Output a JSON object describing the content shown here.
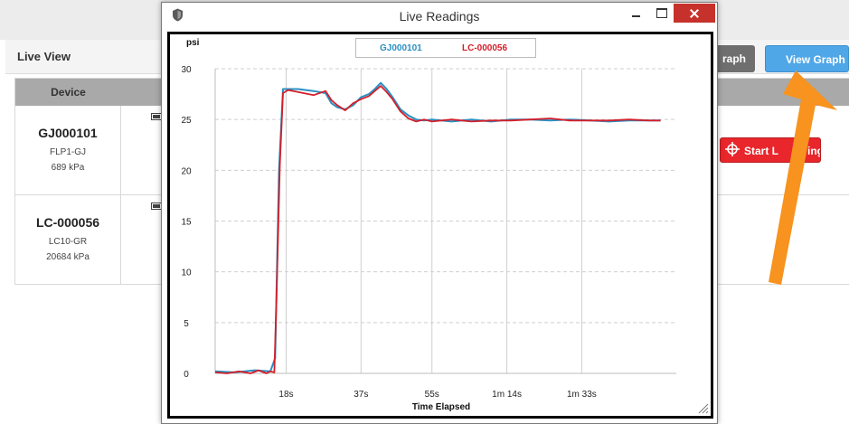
{
  "app": {
    "panel_title": "Live View",
    "graph_button_partial": "raph",
    "view_graph_button": "View Graph",
    "start_logging_partial": "Start L",
    "start_logging_tail": "ing",
    "table": {
      "device_header": "Device",
      "rows": [
        {
          "id": "GJ000101",
          "model": "FLP1-GJ",
          "pressure": "689 kPa"
        },
        {
          "id": "LC-000056",
          "model": "LC10-GR",
          "pressure": "20684 kPa"
        }
      ]
    },
    "colors": {
      "view_graph": "#4fa7e8",
      "start_logging": "#e8262b",
      "arrow": "#f7931e"
    }
  },
  "window": {
    "title": "Live Readings"
  },
  "chart_data": {
    "type": "line",
    "ylabel": "psi",
    "xlabel": "Time Elapsed",
    "ylim": [
      0,
      30
    ],
    "yticks": [
      0,
      5,
      10,
      15,
      20,
      25,
      30
    ],
    "xlim": [
      0,
      117
    ],
    "xticks": [
      {
        "t": 18,
        "label": "18s"
      },
      {
        "t": 37,
        "label": "37s"
      },
      {
        "t": 55,
        "label": "55s"
      },
      {
        "t": 74,
        "label": "1m 14s"
      },
      {
        "t": 93,
        "label": "1m 33s"
      }
    ],
    "grid": true,
    "legend_position": "top-center",
    "series": [
      {
        "name": "GJ000101",
        "color": "#2a8fc2",
        "x": [
          0,
          5,
          10,
          14,
          15.2,
          16.2,
          17.2,
          18.5,
          21,
          25,
          28,
          29.5,
          31,
          33,
          35,
          37,
          39,
          40.5,
          42,
          43.5,
          45,
          47,
          49,
          51,
          53,
          55,
          60,
          65,
          70,
          75,
          80,
          85,
          90,
          95,
          100,
          105,
          110,
          113
        ],
        "y": [
          0.2,
          0.1,
          0.3,
          0.2,
          1.5,
          20,
          28,
          28,
          28,
          27.8,
          27.6,
          26.6,
          26.2,
          26.0,
          26.4,
          27.2,
          27.5,
          28.0,
          28.6,
          28.0,
          27.2,
          26.0,
          25.4,
          25.0,
          24.9,
          25.0,
          24.8,
          25.0,
          24.8,
          25.0,
          25.0,
          24.9,
          25.0,
          24.9,
          24.8,
          24.9,
          24.9,
          24.9
        ]
      },
      {
        "name": "LC-000056",
        "color": "#d31f2a",
        "x": [
          0,
          3,
          6,
          9,
          11,
          13,
          14,
          15,
          15.6,
          16.4,
          17.2,
          18.5,
          21,
          25,
          28,
          29.5,
          31,
          33,
          35,
          37,
          39,
          40.5,
          42,
          43.5,
          45,
          47,
          49,
          51,
          53,
          55,
          60,
          65,
          70,
          75,
          80,
          85,
          90,
          95,
          100,
          105,
          110,
          113
        ],
        "y": [
          0.1,
          0.0,
          0.2,
          0.0,
          0.3,
          0.0,
          0.2,
          0.1,
          8,
          20.5,
          27.6,
          27.9,
          27.7,
          27.4,
          27.8,
          26.9,
          26.4,
          25.9,
          26.6,
          27.0,
          27.3,
          27.8,
          28.3,
          27.7,
          27.0,
          25.8,
          25.1,
          24.8,
          25.0,
          24.8,
          25.0,
          24.8,
          24.9,
          24.9,
          25.0,
          25.1,
          24.9,
          24.9,
          24.9,
          25.0,
          24.9,
          24.9
        ]
      }
    ]
  }
}
